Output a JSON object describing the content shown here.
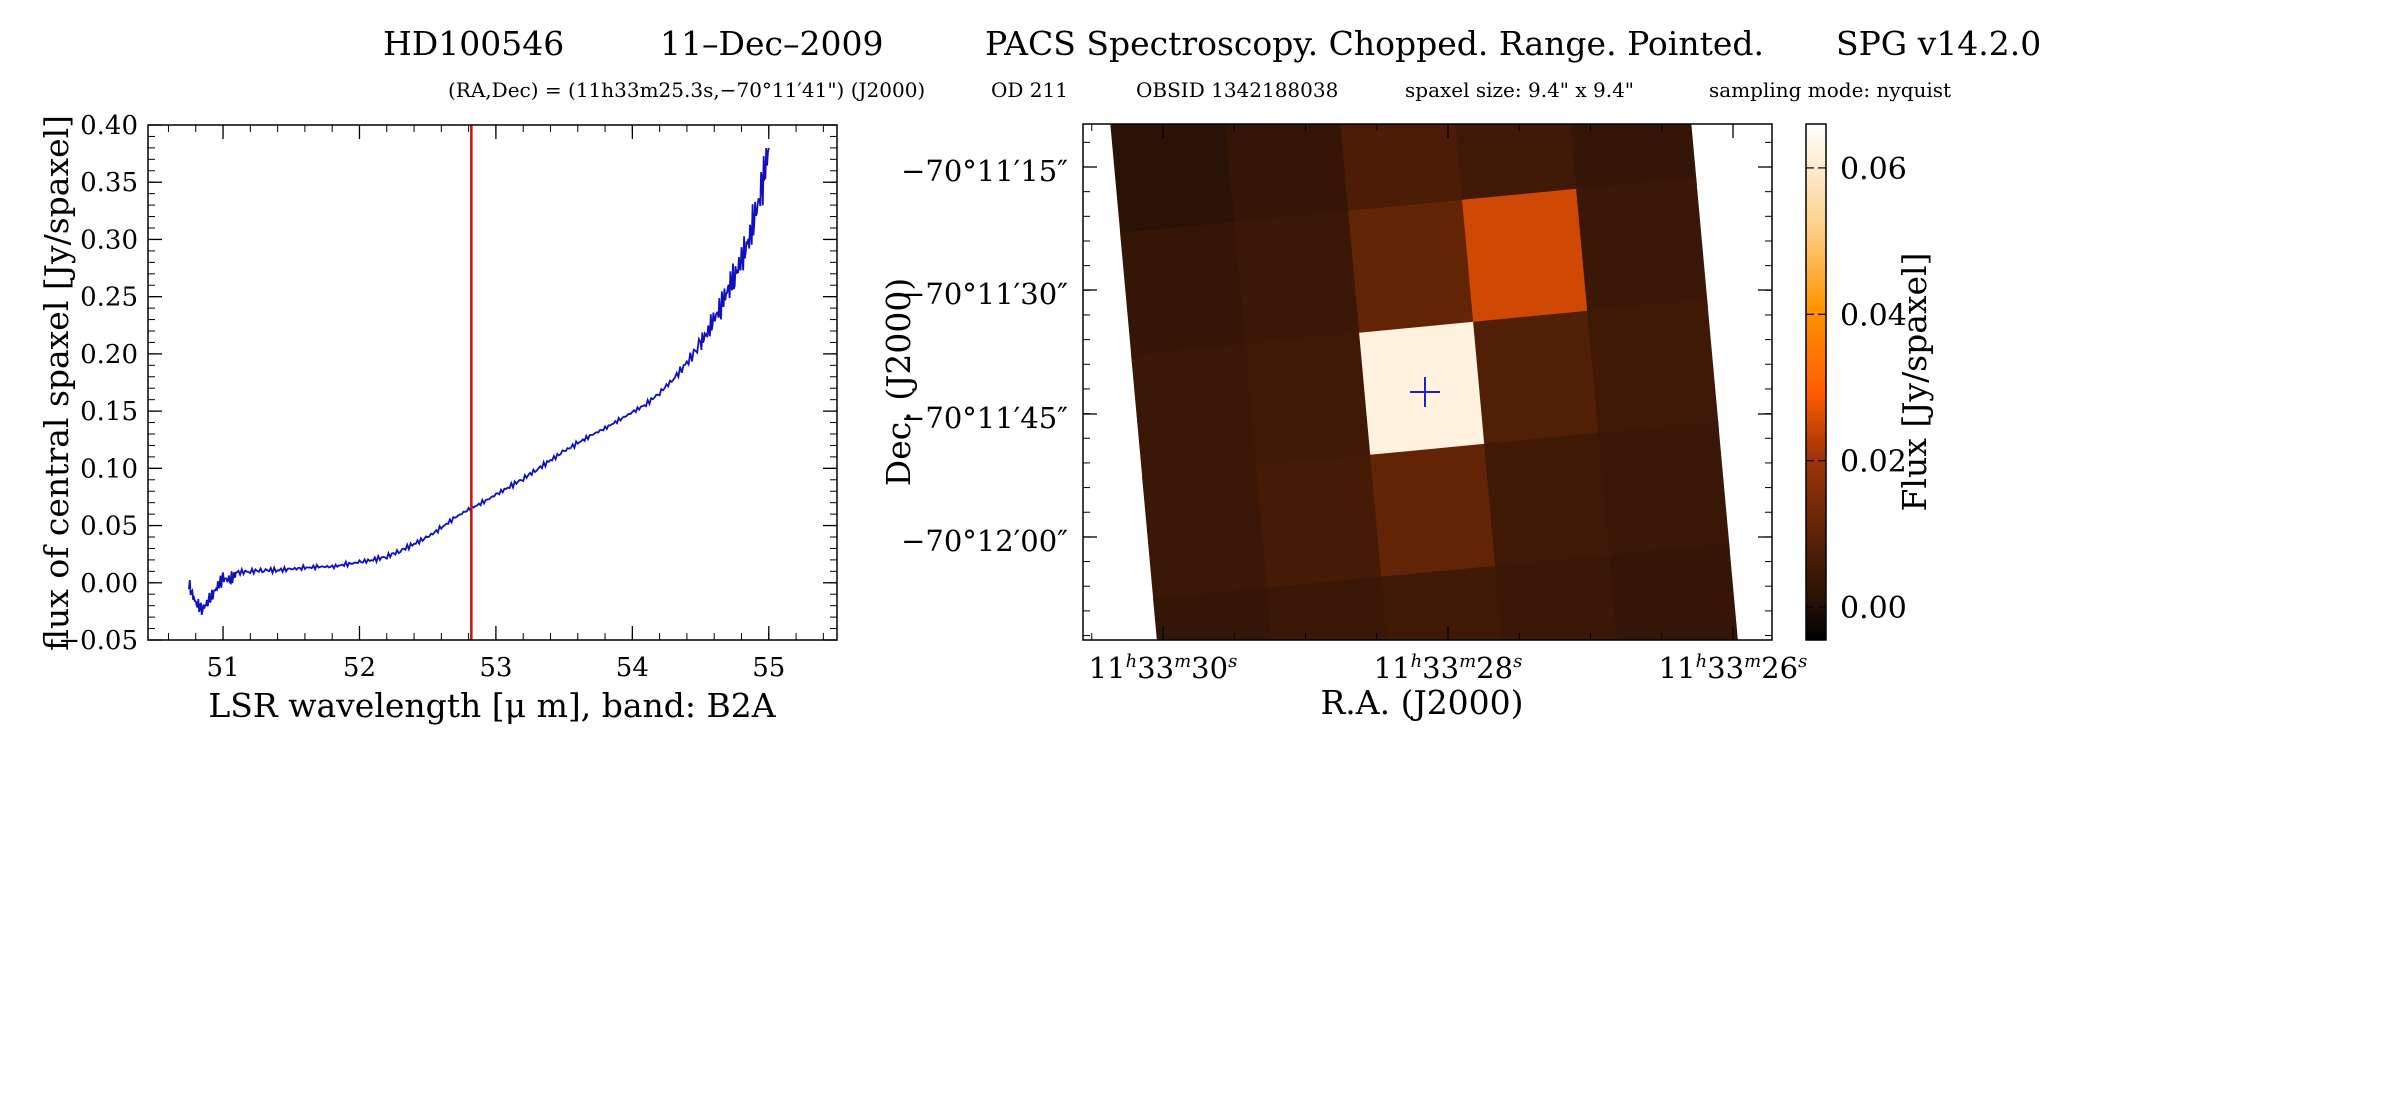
{
  "header": {
    "object": "HD100546",
    "date": "11–Dec–2009",
    "mode": "PACS Spectroscopy. Chopped. Range. Pointed.",
    "spg": "SPG v14.2.0",
    "coords": "(RA,Dec) = (11h33m25.3s,−70°11′41\") (J2000)",
    "od": "OD 211",
    "obsid": "OBSID 1342188038",
    "spaxel": "spaxel size: 9.4\" x 9.4\"",
    "sampling": "sampling mode: nyquist"
  },
  "colors": {
    "spectrum": "#1010c0",
    "marker_line": "#cc1111",
    "cross": "#2020d0",
    "colormap": [
      "#000000",
      "#2a1206",
      "#5a2206",
      "#a43608",
      "#ff5d00",
      "#ff9400",
      "#ffd089",
      "#ffffff"
    ]
  },
  "chart_data": [
    {
      "type": "line",
      "xlabel": "LSR wavelength [μ m], band: B2A",
      "ylabel": "flux of central spaxel [Jy/spaxel]",
      "xlim": [
        50.45,
        55.5
      ],
      "ylim": [
        -0.05,
        0.4
      ],
      "xticks": [
        51,
        52,
        53,
        54,
        55
      ],
      "xtick_labels": [
        "51",
        "52",
        "53",
        "54",
        "55"
      ],
      "yticks": [
        -0.05,
        0.0,
        0.05,
        0.1,
        0.15,
        0.2,
        0.25,
        0.3,
        0.35,
        0.4
      ],
      "ytick_labels": [
        "−0.05",
        "0.00",
        "0.05",
        "0.10",
        "0.15",
        "0.20",
        "0.25",
        "0.30",
        "0.35",
        "0.40"
      ],
      "marker_x": 52.82,
      "series": [
        {
          "x": [
            50.75,
            50.8,
            50.85,
            50.9,
            50.95,
            51.0,
            51.05,
            51.1,
            51.2,
            51.3,
            51.4,
            51.5,
            51.6,
            51.7,
            51.8,
            51.9,
            52.0,
            52.1,
            52.2,
            52.3,
            52.4,
            52.5,
            52.6,
            52.7,
            52.8,
            52.9,
            53.0,
            53.1,
            53.2,
            53.3,
            53.4,
            53.5,
            53.6,
            53.7,
            53.8,
            53.9,
            54.0,
            54.1,
            54.2,
            54.3,
            54.4,
            54.5,
            54.55,
            54.6,
            54.65,
            54.7,
            54.75,
            54.8,
            54.85,
            54.9,
            54.95,
            55.0
          ],
          "values": [
            -0.002,
            -0.018,
            -0.023,
            -0.015,
            -0.005,
            0.004,
            0.002,
            0.009,
            0.01,
            0.011,
            0.011,
            0.012,
            0.013,
            0.014,
            0.014,
            0.016,
            0.018,
            0.02,
            0.023,
            0.028,
            0.034,
            0.04,
            0.048,
            0.057,
            0.064,
            0.07,
            0.077,
            0.084,
            0.091,
            0.099,
            0.107,
            0.115,
            0.122,
            0.129,
            0.135,
            0.142,
            0.149,
            0.156,
            0.166,
            0.178,
            0.192,
            0.209,
            0.219,
            0.23,
            0.242,
            0.256,
            0.268,
            0.282,
            0.298,
            0.32,
            0.345,
            0.38
          ]
        }
      ]
    },
    {
      "type": "heatmap",
      "xlabel": "R.A. (J2000)",
      "ylabel": "Dec. (J2000)",
      "xtick_labels": [
        "11h33m30s",
        "11h33m28s",
        "11h33m26s"
      ],
      "ytick_labels": [
        "−70°11′15″",
        "−70°11′30″",
        "−70°11′45″",
        "−70°12′00″"
      ],
      "colorbar": {
        "label": "Flux [Jy/spaxel]",
        "range": [
          -0.0045,
          0.066
        ],
        "ticks": [
          0.0,
          0.02,
          0.04,
          0.06
        ],
        "tick_labels": [
          "0.00",
          "0.02",
          "0.04",
          "0.06"
        ]
      },
      "spaxel_flux": [
        [
          0.001,
          0.003,
          0.007,
          0.005,
          0.003
        ],
        [
          0.003,
          0.004,
          0.011,
          0.025,
          0.004
        ],
        [
          0.004,
          0.005,
          0.062,
          0.008,
          0.005
        ],
        [
          0.004,
          0.006,
          0.011,
          0.005,
          0.004
        ],
        [
          0.003,
          0.004,
          0.005,
          0.004,
          0.003
        ]
      ],
      "center_marker": "cross"
    }
  ]
}
